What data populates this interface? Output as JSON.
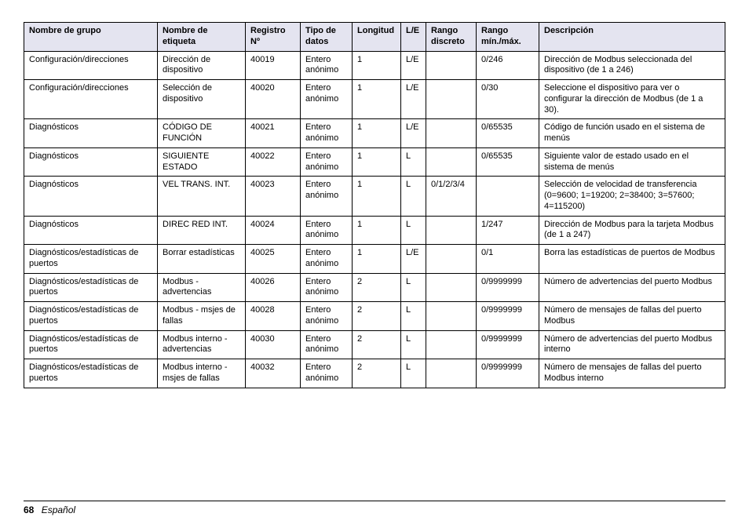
{
  "table": {
    "header_bg": "#e4e4f0",
    "border_color": "#000000",
    "columns": [
      {
        "key": "group",
        "label": "Nombre de grupo"
      },
      {
        "key": "label",
        "label": "Nombre de etiqueta"
      },
      {
        "key": "reg",
        "label": "Registro Nº"
      },
      {
        "key": "dtype",
        "label": "Tipo de datos"
      },
      {
        "key": "len",
        "label": "Longitud"
      },
      {
        "key": "le",
        "label": "L/E"
      },
      {
        "key": "rdisc",
        "label": "Rango discreto"
      },
      {
        "key": "rmm",
        "label": "Rango mín./máx."
      },
      {
        "key": "desc",
        "label": "Descripción"
      }
    ],
    "rows": [
      {
        "group": "Configuración/direcciones",
        "label": "Dirección de dispositivo",
        "reg": "40019",
        "dtype": "Entero anónimo",
        "len": "1",
        "le": "L/E",
        "rdisc": "",
        "rmm": "0/246",
        "desc": "Dirección de Modbus seleccionada del dispositivo (de 1 a 246)"
      },
      {
        "group": "Configuración/direcciones",
        "label": "Selección de dispositivo",
        "reg": "40020",
        "dtype": "Entero anónimo",
        "len": "1",
        "le": "L/E",
        "rdisc": "",
        "rmm": "0/30",
        "desc": "Seleccione el dispositivo para ver o configurar la dirección de Modbus (de 1 a 30)."
      },
      {
        "group": "Diagnósticos",
        "label": "CÓDIGO DE FUNCIÓN",
        "reg": "40021",
        "dtype": "Entero anónimo",
        "len": "1",
        "le": "L/E",
        "rdisc": "",
        "rmm": "0/65535",
        "desc": "Código de función usado en el sistema de menús"
      },
      {
        "group": "Diagnósticos",
        "label": "SIGUIENTE ESTADO",
        "reg": "40022",
        "dtype": "Entero anónimo",
        "len": "1",
        "le": "L",
        "rdisc": "",
        "rmm": "0/65535",
        "desc": "Siguiente valor de estado usado en el sistema de menús"
      },
      {
        "group": "Diagnósticos",
        "label": "VEL TRANS. INT.",
        "reg": "40023",
        "dtype": "Entero anónimo",
        "len": "1",
        "le": "L",
        "rdisc": "0/1/2/3/4",
        "rmm": "",
        "desc": "Selección de velocidad de transferencia (0=9600; 1=19200; 2=38400; 3=57600; 4=115200)"
      },
      {
        "group": "Diagnósticos",
        "label": "DIREC RED INT.",
        "reg": "40024",
        "dtype": "Entero anónimo",
        "len": "1",
        "le": "L",
        "rdisc": "",
        "rmm": "1/247",
        "desc": "Dirección de Modbus para la tarjeta Modbus (de 1 a 247)"
      },
      {
        "group": "Diagnósticos/estadísticas de puertos",
        "label": "Borrar estadísticas",
        "reg": "40025",
        "dtype": "Entero anónimo",
        "len": "1",
        "le": "L/E",
        "rdisc": "",
        "rmm": "0/1",
        "desc": "Borra las estadísticas de puertos de Modbus"
      },
      {
        "group": "Diagnósticos/estadísticas de puertos",
        "label": "Modbus - advertencias",
        "reg": "40026",
        "dtype": "Entero anónimo",
        "len": "2",
        "le": "L",
        "rdisc": "",
        "rmm": "0/9999999",
        "desc": "Número de advertencias del puerto Modbus"
      },
      {
        "group": "Diagnósticos/estadísticas de puertos",
        "label": "Modbus - msjes de fallas",
        "reg": "40028",
        "dtype": "Entero anónimo",
        "len": "2",
        "le": "L",
        "rdisc": "",
        "rmm": "0/9999999",
        "desc": "Número de mensajes de fallas del puerto Modbus"
      },
      {
        "group": "Diagnósticos/estadísticas de puertos",
        "label": "Modbus interno - advertencias",
        "reg": "40030",
        "dtype": "Entero anónimo",
        "len": "2",
        "le": "L",
        "rdisc": "",
        "rmm": "0/9999999",
        "desc": "Número de advertencias del puerto Modbus interno"
      },
      {
        "group": "Diagnósticos/estadísticas de puertos",
        "label": "Modbus interno - msjes de fallas",
        "reg": "40032",
        "dtype": "Entero anónimo",
        "len": "2",
        "le": "L",
        "rdisc": "",
        "rmm": "0/9999999",
        "desc": "Número de mensajes de fallas del puerto Modbus interno"
      }
    ]
  },
  "footer": {
    "page_number": "68",
    "language": "Español"
  }
}
